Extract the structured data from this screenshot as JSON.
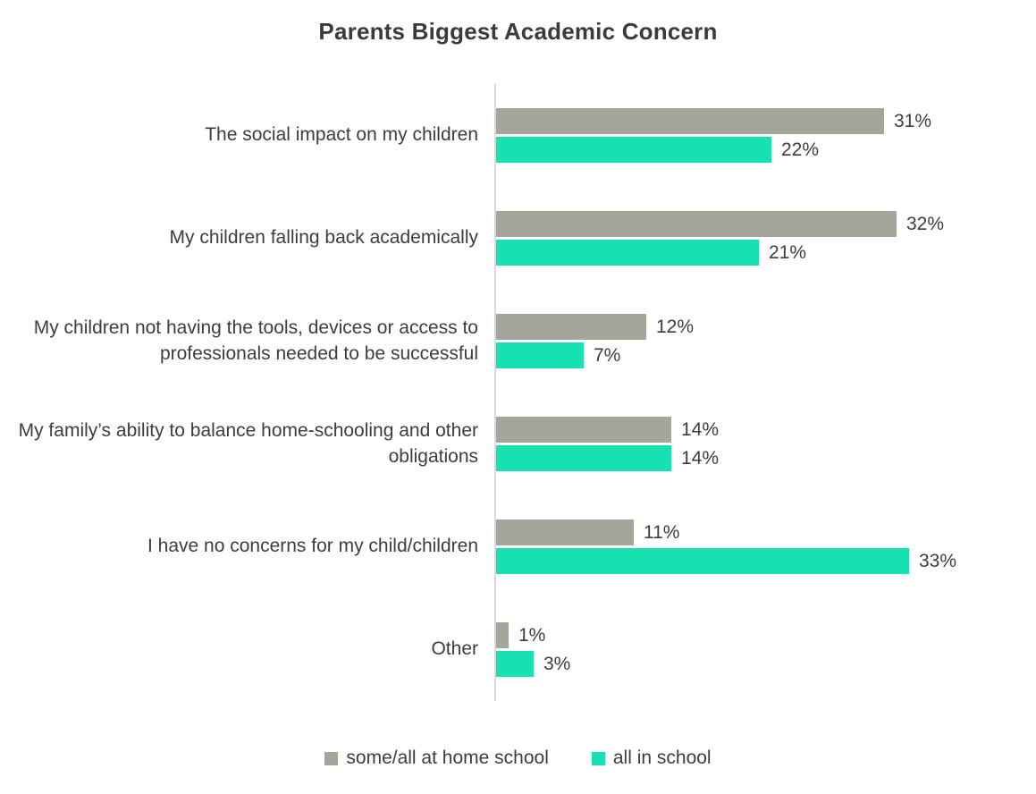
{
  "title": "Parents Biggest Academic Concern",
  "colors": {
    "home_school_bar": "#a5a59b",
    "in_school_bar": "#17e1b0",
    "text": "#3d3d3d",
    "axis_line": "#d9d9d9"
  },
  "chart_data": {
    "type": "bar",
    "orientation": "horizontal",
    "title": "Parents Biggest Academic Concern",
    "categories": [
      "The social impact on my children",
      "My children falling back academically",
      "My children not having the tools, devices or access to professionals needed to be successful",
      "My family’s ability to balance home-schooling and other obligations",
      "I have no concerns for my child/children",
      "Other"
    ],
    "series": [
      {
        "name": "some/all at home school",
        "color": "#a5a59b",
        "values": [
          31,
          32,
          12,
          14,
          11,
          1
        ],
        "labels": [
          "31%",
          "32%",
          "12%",
          "14%",
          "11%",
          "1%"
        ]
      },
      {
        "name": "all in school",
        "color": "#17e1b0",
        "values": [
          22,
          21,
          7,
          14,
          33,
          3
        ],
        "labels": [
          "22%",
          "21%",
          "7%",
          "14%",
          "33%",
          "3%"
        ]
      }
    ],
    "xlim": [
      0,
      34
    ],
    "grid": false,
    "legend_position": "bottom",
    "value_labels_shown": true
  }
}
